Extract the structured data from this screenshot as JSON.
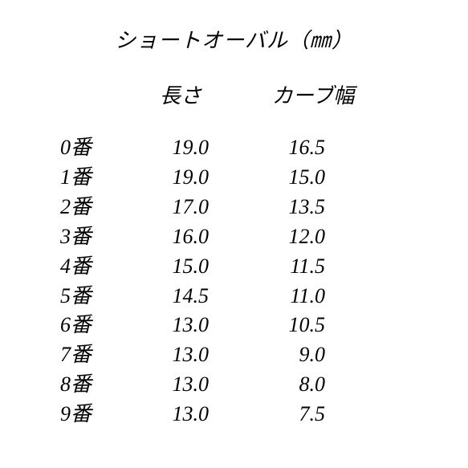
{
  "title": "ショートオーバル（㎜）",
  "headers": {
    "col1": "長さ",
    "col2": "カーブ幅"
  },
  "rows": [
    {
      "label": "0番",
      "length": "19.0",
      "curve": "16.5"
    },
    {
      "label": "1番",
      "length": "19.0",
      "curve": "15.0"
    },
    {
      "label": "2番",
      "length": "17.0",
      "curve": "13.5"
    },
    {
      "label": "3番",
      "length": "16.0",
      "curve": "12.0"
    },
    {
      "label": "4番",
      "length": "15.0",
      "curve": "11.5"
    },
    {
      "label": "5番",
      "length": "14.5",
      "curve": "11.0"
    },
    {
      "label": "6番",
      "length": "13.0",
      "curve": "10.5"
    },
    {
      "label": "7番",
      "length": "13.0",
      "curve": "9.0"
    },
    {
      "label": "8番",
      "length": "13.0",
      "curve": "8.0"
    },
    {
      "label": "9番",
      "length": "13.0",
      "curve": "7.5"
    }
  ],
  "style": {
    "background_color": "#ffffff",
    "text_color": "#000000",
    "font_style": "italic",
    "title_fontsize": 26,
    "body_fontsize": 26
  }
}
